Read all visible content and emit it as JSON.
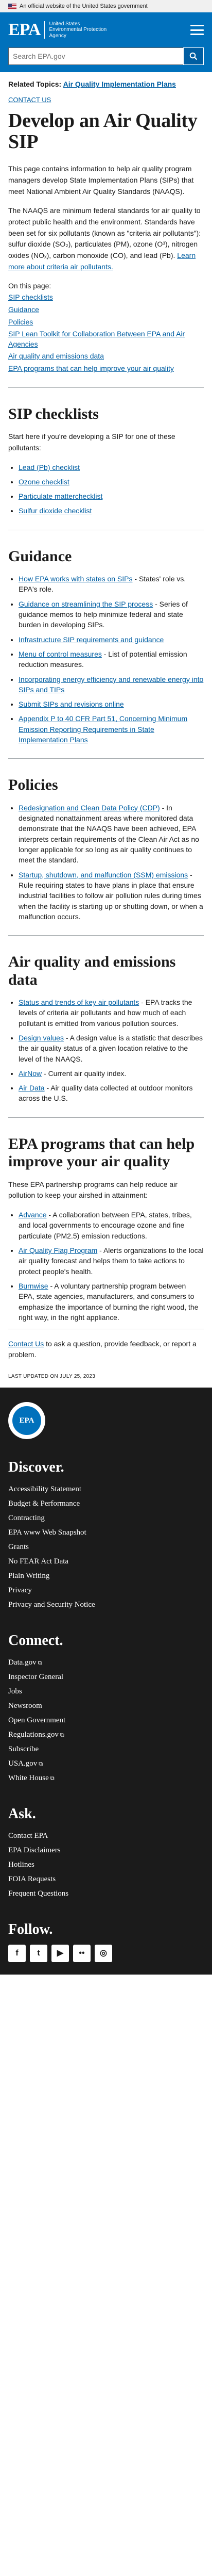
{
  "gov_banner": {
    "text": "An official website of the United States government"
  },
  "header": {
    "logo": "EPA",
    "agency_line1": "United States",
    "agency_line2": "Environmental Protection",
    "agency_line3": "Agency",
    "search_placeholder": "Search EPA.gov"
  },
  "related": {
    "label": "Related Topics:",
    "link": "Air Quality Implementation Plans"
  },
  "contact_top": "CONTACT US",
  "page_title": "Develop an Air Quality SIP",
  "intro": {
    "p1": "This page contains information to help air quality program managers develop State Implementation Plans (SIPs) that meet National Ambient Air Quality Standards (NAAQS).",
    "p2": "The NAAQS are minimum federal standards for air quality to protect public health and the environment. Standards have been set for six pollutants (known as \"criteria air pollutants\"): sulfur dioxide (SO₂), particulates (PM), ozone (O³), nitrogen oxides (NOₓ), carbon monoxide (CO), and lead (Pb).",
    "p2_link": "Learn more about criteria air pollutants."
  },
  "on_page": {
    "label": "On this page:",
    "items": [
      "SIP checklists",
      "Guidance",
      "Policies",
      "SIP Lean Toolkit for Collaboration Between EPA and Air Agencies",
      "Air quality and emissions data",
      "EPA programs that can help improve your air quality"
    ]
  },
  "checklists": {
    "heading": "SIP checklists",
    "intro": "Start here if you're developing a SIP for one of these pollutants:",
    "items": [
      "Lead (Pb) checklist",
      "Ozone checklist",
      "Particulate matterchecklist",
      "Sulfur dioxide checklist"
    ]
  },
  "guidance": {
    "heading": "Guidance",
    "items": [
      {
        "link": "How EPA works with states on SIPs",
        "text": " - States' role vs. EPA's role."
      },
      {
        "link": "Guidance on streamlining the SIP process",
        "text": " - Series of guidance memos to help minimize federal and state burden in developing SIPs."
      },
      {
        "link": "Infrastructure SIP requirements and guidance",
        "text": ""
      },
      {
        "link": "Menu of control measures",
        "text": " - List of potential emission reduction measures."
      },
      {
        "link": "Incorporating energy efficiency and renewable energy into SIPs and TIPs",
        "text": ""
      },
      {
        "link": "Submit SIPs and revisions online",
        "text": ""
      },
      {
        "link": "Appendix P to 40 CFR Part 51, Concerning Minimum Emission Reporting Requirements in State Implementation Plans",
        "text": ""
      }
    ]
  },
  "policies": {
    "heading": "Policies",
    "items": [
      {
        "link": "Redesignation and Clean Data Policy (CDP)",
        "text": " - In designated nonattainment areas where monitored data demonstrate that the NAAQS have been achieved, EPA interprets certain requirements of the Clean Air Act as no longer applicable for so long as air quality continues to meet the standard."
      },
      {
        "link": "Startup, shutdown, and malfunction (SSM) emissions",
        "text": " - Rule requiring states to have plans in place that ensure industrial facilities to follow air pollution rules during times when the facility is starting up or shutting down, or when a malfunction occurs."
      }
    ]
  },
  "air_data": {
    "heading": "Air quality and emissions data",
    "items": [
      {
        "link": "Status and trends of key air pollutants",
        "text": " - EPA tracks the levels of criteria air pollutants and how much of each pollutant is emitted from various pollution sources."
      },
      {
        "link": "Design values",
        "text": " - A design value is a statistic that describes the air quality status of a given location relative to the level of the NAAQS."
      },
      {
        "link": "AirNow",
        "text": " - Current air quality index."
      },
      {
        "link": "Air Data",
        "text": " - Air quality data collected at outdoor monitors across the U.S."
      }
    ]
  },
  "programs": {
    "heading": "EPA programs that can help improve your air quality",
    "intro": "These EPA partnership programs can help reduce air pollution to keep your airshed in attainment:",
    "items": [
      {
        "link": "Advance",
        "text": " - A collaboration between EPA, states, tribes, and local governments to encourage ozone and fine particulate (PM2.5) emission reductions."
      },
      {
        "link": "Air Quality Flag Program",
        "text": " - Alerts organizations to the local air quality forecast and helps them to take actions to protect people's health."
      },
      {
        "link": "Burnwise",
        "text": " - A voluntary partnership program between EPA, state agencies, manufacturers, and consumers to emphasize the importance of burning the right wood, the right way, in the right appliance."
      }
    ]
  },
  "contact_box": {
    "link": "Contact Us",
    "text": " to ask a question, provide feedback, or report a problem."
  },
  "last_updated": "LAST UPDATED ON JULY 25, 2023",
  "footer": {
    "seal_text": "EPA",
    "discover": {
      "heading": "Discover.",
      "items": [
        "Accessibility Statement",
        "Budget & Performance",
        "Contracting",
        "EPA www Web Snapshot",
        "Grants",
        "No FEAR Act Data",
        "Plain Writing",
        "Privacy",
        "Privacy and Security Notice"
      ]
    },
    "connect": {
      "heading": "Connect.",
      "items": [
        {
          "label": "Data.gov",
          "ext": true
        },
        {
          "label": "Inspector General",
          "ext": false
        },
        {
          "label": "Jobs",
          "ext": false
        },
        {
          "label": "Newsroom",
          "ext": false
        },
        {
          "label": "Open Government",
          "ext": false
        },
        {
          "label": "Regulations.gov",
          "ext": true
        },
        {
          "label": "Subscribe",
          "ext": false
        },
        {
          "label": "USA.gov",
          "ext": true
        },
        {
          "label": "White House",
          "ext": true
        }
      ]
    },
    "ask": {
      "heading": "Ask.",
      "items": [
        "Contact EPA",
        "EPA Disclaimers",
        "Hotlines",
        "FOIA Requests",
        "Frequent Questions"
      ]
    },
    "follow": {
      "heading": "Follow.",
      "socials": [
        {
          "name": "facebook-icon",
          "glyph": "f"
        },
        {
          "name": "twitter-icon",
          "glyph": "t"
        },
        {
          "name": "youtube-icon",
          "glyph": "▶"
        },
        {
          "name": "flickr-icon",
          "glyph": "••"
        },
        {
          "name": "instagram-icon",
          "glyph": "◎"
        }
      ]
    }
  }
}
